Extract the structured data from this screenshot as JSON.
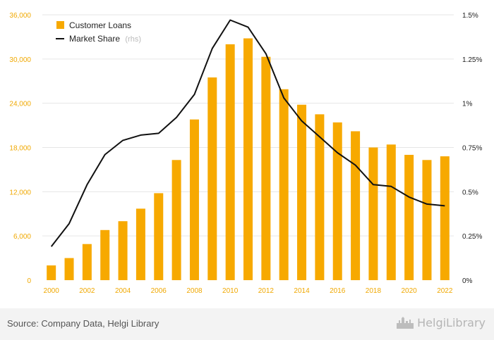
{
  "colors": {
    "bar": "#f7a900",
    "line": "#111111",
    "grid": "#e6e6e6",
    "left_axis_text": "#f0a800",
    "footer_bg": "#f3f3f3"
  },
  "chart_data": {
    "type": "bar",
    "title": "",
    "categories": [
      "2000",
      "2001",
      "2002",
      "2003",
      "2004",
      "2005",
      "2006",
      "2007",
      "2008",
      "2009",
      "2010",
      "2011",
      "2012",
      "2013",
      "2014",
      "2015",
      "2016",
      "2017",
      "2018",
      "2019",
      "2020",
      "2021",
      "2022"
    ],
    "x_tick_labels": [
      "2000",
      "2002",
      "2004",
      "2006",
      "2008",
      "2010",
      "2012",
      "2014",
      "2016",
      "2018",
      "2020",
      "2022"
    ],
    "series": [
      {
        "name": "Customer Loans",
        "type": "bar",
        "axis": "left",
        "values": [
          2000,
          3000,
          4900,
          6800,
          8000,
          9700,
          11800,
          16300,
          21800,
          27500,
          32000,
          32800,
          30300,
          25900,
          23800,
          22500,
          21400,
          20200,
          18000,
          18400,
          17000,
          16300,
          16800
        ]
      },
      {
        "name": "Market Share",
        "name_note": "(rhs)",
        "type": "line",
        "axis": "right",
        "values": [
          0.19,
          0.32,
          0.54,
          0.71,
          0.79,
          0.82,
          0.83,
          0.92,
          1.05,
          1.31,
          1.47,
          1.43,
          1.28,
          1.03,
          0.9,
          0.81,
          0.72,
          0.65,
          0.54,
          0.53,
          0.47,
          0.43,
          0.42
        ]
      }
    ],
    "y_left": {
      "min": 0,
      "max": 36000,
      "ticks": [
        0,
        6000,
        12000,
        18000,
        24000,
        30000,
        36000
      ],
      "tick_labels": [
        "0",
        "6,000",
        "12,000",
        "18,000",
        "24,000",
        "30,000",
        "36,000"
      ]
    },
    "y_right": {
      "min": 0,
      "max": 1.5,
      "ticks": [
        0,
        0.25,
        0.5,
        0.75,
        1,
        1.25,
        1.5
      ],
      "tick_labels": [
        "0%",
        "0.25%",
        "0.5%",
        "0.75%",
        "1%",
        "1.25%",
        "1.5%"
      ]
    },
    "xlabel": "",
    "ylabel": "",
    "grid": true,
    "legend_position": "top-left"
  },
  "footer": {
    "source": "Source: Company Data, Helgi Library",
    "brand": "HelgiLibrary",
    "brand_icon": "city-skyline-icon"
  }
}
